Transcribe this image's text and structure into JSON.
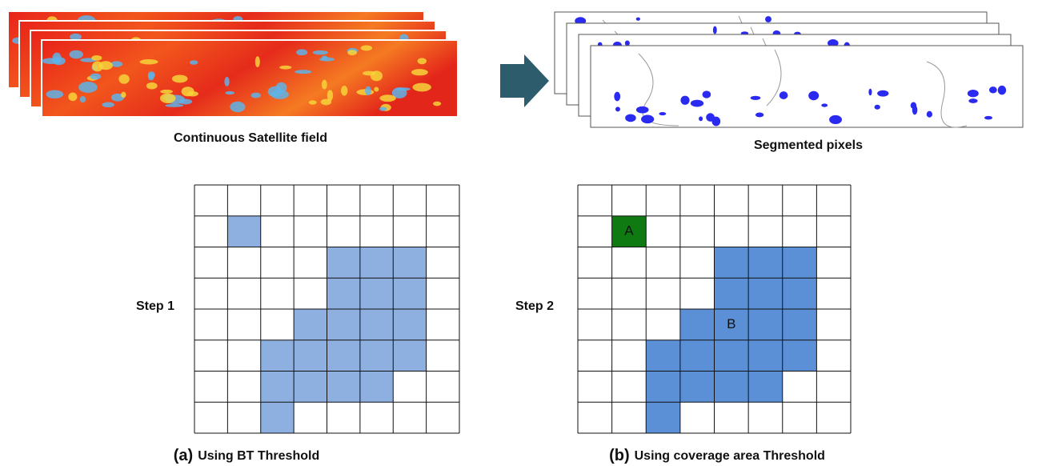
{
  "top": {
    "left_caption": "Continuous Satellite field",
    "right_caption": "Segmented pixels"
  },
  "panels": [
    {
      "step": "Step 1",
      "tag": "(a)",
      "caption": "Using BT Threshold"
    },
    {
      "step": "Step 2",
      "tag": "(b)",
      "caption": "Using coverage area Threshold",
      "cell_labels": [
        "A",
        "B"
      ]
    }
  ]
}
